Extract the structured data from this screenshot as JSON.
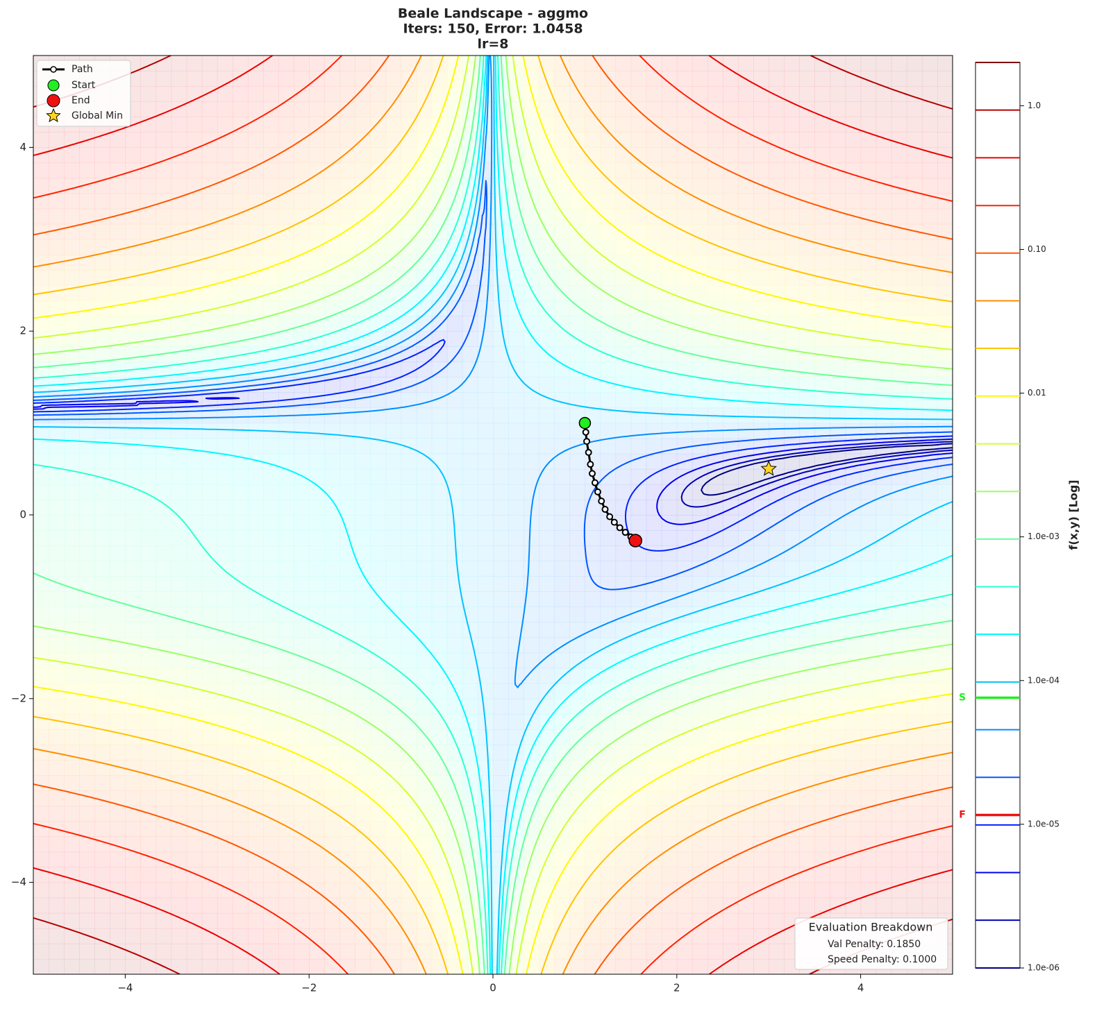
{
  "chart_data": {
    "type": "contour",
    "title": [
      "Beale Landscape - aggmo",
      "Iters: 150, Error: 1.0458",
      "lr=8"
    ],
    "function": "beale",
    "xlim": [
      -5,
      5
    ],
    "ylim": [
      -5,
      5
    ],
    "xticks": [
      {
        "value": -4,
        "label": "−4"
      },
      {
        "value": -2,
        "label": "−2"
      },
      0,
      2,
      4
    ],
    "yticks": [
      {
        "value": -4,
        "label": "−4"
      },
      {
        "value": -2,
        "label": "−2"
      },
      0,
      2,
      4
    ],
    "path": {
      "name": "Path",
      "color": "#000000",
      "x": [
        1.0,
        1.01,
        1.02,
        1.04,
        1.06,
        1.08,
        1.11,
        1.14,
        1.18,
        1.22,
        1.27,
        1.32,
        1.38,
        1.44,
        1.5,
        1.55
      ],
      "y": [
        1.0,
        0.9,
        0.8,
        0.68,
        0.55,
        0.45,
        0.35,
        0.25,
        0.15,
        0.06,
        -0.02,
        -0.08,
        -0.14,
        -0.19,
        -0.24,
        -0.28
      ]
    },
    "start": {
      "name": "Start",
      "x": 1.0,
      "y": 1.0,
      "color": "#22ee22"
    },
    "end": {
      "name": "End",
      "x": 1.55,
      "y": -0.28,
      "color": "#ee1111"
    },
    "global_min": {
      "name": "Global Min",
      "x": 3,
      "y": 0.5,
      "color": "#ffd51f"
    },
    "colorbar": {
      "label": "f(x,y) [Log]",
      "log": true,
      "lim": [
        1e-06,
        2
      ],
      "ticks": [
        {
          "value": 1e-06,
          "label": "1.0e-06"
        },
        {
          "value": 1e-05,
          "label": "1.0e-05"
        },
        {
          "value": 0.0001,
          "label": "1.0e-04"
        },
        {
          "value": 0.001,
          "label": "1.0e-03"
        },
        0.01,
        {
          "value": 0.1,
          "label": "0.10"
        },
        {
          "value": 1,
          "label": "1.0"
        }
      ],
      "levels": [
        1e-06,
        2.15e-06,
        4.61e-06,
        9.89e-06,
        2.12e-05,
        4.55e-05,
        9.77e-05,
        0.00021,
        0.00045,
        0.000965,
        0.00207,
        0.00444,
        0.00954,
        0.0205,
        0.0439,
        0.0943,
        0.202,
        0.434,
        0.932,
        2
      ],
      "markers": [
        {
          "label": "S",
          "value": 7.6e-05,
          "color": "#22ee22"
        },
        {
          "label": "F",
          "value": 1.16e-05,
          "color": "#ee1111"
        }
      ]
    },
    "evaluation": {
      "title": "Evaluation Breakdown",
      "lines": [
        "Val Penalty: 0.1850",
        "Speed Penalty: 0.1000"
      ]
    }
  }
}
